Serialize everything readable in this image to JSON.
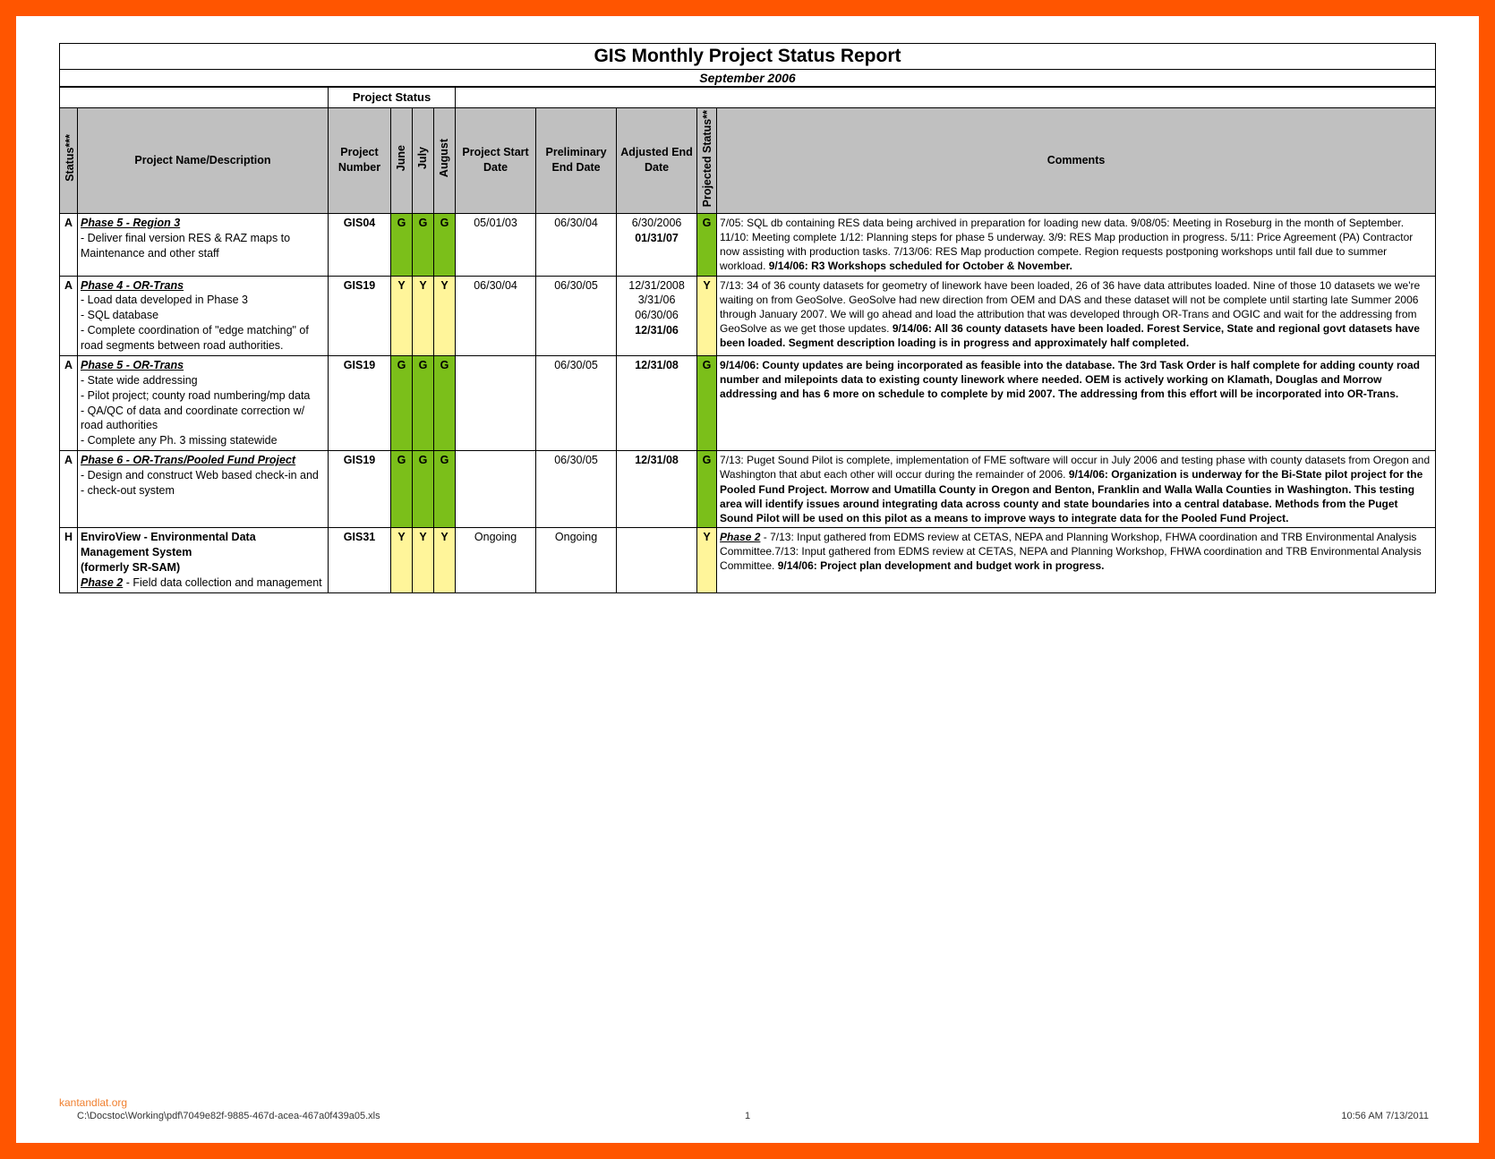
{
  "frame_color": "#ff5500",
  "status_colors": {
    "G": "#7bbf1a",
    "Y": "#fff59a"
  },
  "title": "GIS Monthly Project Status Report",
  "subtitle": "September 2006",
  "project_status_group_label": "Project Status",
  "headers": {
    "status": "Status***",
    "desc": "Project Name/Description",
    "number": "Project Number",
    "months": [
      "June",
      "July",
      "August"
    ],
    "start": "Project Start Date",
    "prelim": "Preliminary End Date",
    "adjusted": "Adjusted End Date",
    "projected": "Projected Status**",
    "comments": "Comments"
  },
  "rows": [
    {
      "status": "A",
      "name": "Phase 5 - Region 3",
      "desc_lines": [
        " - Deliver final version RES & RAZ maps to Maintenance and other staff"
      ],
      "number": "GIS04",
      "months": [
        "G",
        "G",
        "G"
      ],
      "start": "05/01/03",
      "prelim": "06/30/04",
      "adjusted_plain": "6/30/2006",
      "adjusted_bold": "01/31/07",
      "projected": "G",
      "comments_plain": "7/05: SQL db containing RES data being archived in preparation for loading new data.  9/08/05:  Meeting in Roseburg in the month of September.  11/10: Meeting complete 1/12: Planning steps for phase 5 underway.  3/9: RES Map production in progress. 5/11: Price Agreement (PA) Contractor now assisting with production tasks.  7/13/06: RES Map production compete. Region requests postponing workshops until fall due to summer workload. ",
      "comments_bold": "9/14/06: R3 Workshops scheduled for October & November."
    },
    {
      "status": "A",
      "name": "Phase 4 - OR-Trans",
      "desc_lines": [
        " - Load data developed in Phase 3",
        " - SQL database",
        " - Complete coordination of \"edge matching\" of road segments between road authorities."
      ],
      "number": "GIS19",
      "months": [
        "Y",
        "Y",
        "Y"
      ],
      "start": "06/30/04",
      "prelim": "06/30/05",
      "adjusted_plain": "12/31/2008\n3/31/06\n06/30/06",
      "adjusted_bold": "12/31/06",
      "projected": "Y",
      "comments_plain": "7/13: 34 of 36 county datasets for geometry of linework have been loaded, 26 of 36 have data attributes loaded.  Nine of those 10 datasets we we're waiting on from GeoSolve.  GeoSolve had new direction from OEM and DAS and these dataset will not be complete until starting late Summer 2006 through January 2007.  We will go ahead and load the attribution that was developed through OR-Trans and OGIC and wait for the addressing from GeoSolve as we get those updates.  ",
      "comments_bold": "9/14/06: All 36 county datasets have been loaded.  Forest Service, State and regional govt datasets have been loaded.  Segment description loading is in progress and approximately half completed."
    },
    {
      "status": "A",
      "name": " Phase 5 - OR-Trans",
      "desc_lines": [
        " - State wide addressing",
        " - Pilot project; county road numbering/mp data",
        " - QA/QC of data and coordinate correction w/ road authorities",
        " - Complete any Ph. 3 missing statewide"
      ],
      "number": "GIS19",
      "months": [
        "G",
        "G",
        "G"
      ],
      "start": "",
      "prelim": "06/30/05",
      "adjusted_plain": "",
      "adjusted_bold": "12/31/08",
      "projected": "G",
      "comments_plain": "",
      "comments_bold": "9/14/06: County updates are being incorporated as feasible into the database.  The 3rd Task Order is half complete for adding county road number and milepoints data to existing county linework where needed.  OEM is actively working on Klamath, Douglas and Morrow addressing and has 6 more on schedule to complete by mid 2007.  The addressing from this effort will be incorporated into OR-Trans."
    },
    {
      "status": "A",
      "name": "Phase 6 - OR-Trans/Pooled Fund Project",
      "desc_lines": [
        " - Design and construct Web based check-in and",
        " - check-out system"
      ],
      "number": "GIS19",
      "months": [
        "G",
        "G",
        "G"
      ],
      "start": "",
      "prelim": "06/30/05",
      "adjusted_plain": "",
      "adjusted_bold": "12/31/08",
      "projected": "G",
      "comments_plain": "7/13: Puget Sound Pilot is complete, implementation of FME software will occur in July 2006 and  testing phase with county datasets from Oregon and Washington that abut each other will occur during the remainder of 2006. ",
      "comments_bold": "9/14/06: Organization is underway for the Bi-State pilot project for the Pooled Fund Project.  Morrow and Umatilla County in Oregon and Benton, Franklin and Walla Walla Counties in Washington.  This testing area will identify issues around integrating data across county and state boundaries into a central database.  Methods from the Puget Sound Pilot will be used on this pilot as a means to improve ways to integrate data for the Pooled Fund Project."
    },
    {
      "status": "H",
      "name_html": "<span class='bold'>EnviroView - Environmental Data Management System<br>(formerly SR-SAM)</span><br><span class='pname'>Phase 2</span> - Field data collection and management",
      "number": "GIS31",
      "months": [
        "Y",
        "Y",
        "Y"
      ],
      "start": "Ongoing",
      "prelim": "Ongoing",
      "adjusted_plain": "",
      "adjusted_bold": "",
      "projected": "Y",
      "comments_plain_prefix_italic": "Phase 2",
      "comments_plain": " - 7/13: Input gathered from EDMS review at CETAS, NEPA and Planning Workshop, FHWA coordination and TRB Environmental Analysis Committee.7/13: Input gathered from EDMS review at CETAS, NEPA and Planning Workshop, FHWA coordination and TRB Environmental Analysis Committee. ",
      "comments_bold": "9/14/06: Project plan development and budget work in progress."
    }
  ],
  "footer": {
    "watermark": "kantandlat.org",
    "path": "C:\\Docstoc\\Working\\pdf\\7049e82f-9885-467d-acea-467a0f439a05.xls",
    "page": "1",
    "timestamp": "10:56 AM   7/13/2011"
  }
}
